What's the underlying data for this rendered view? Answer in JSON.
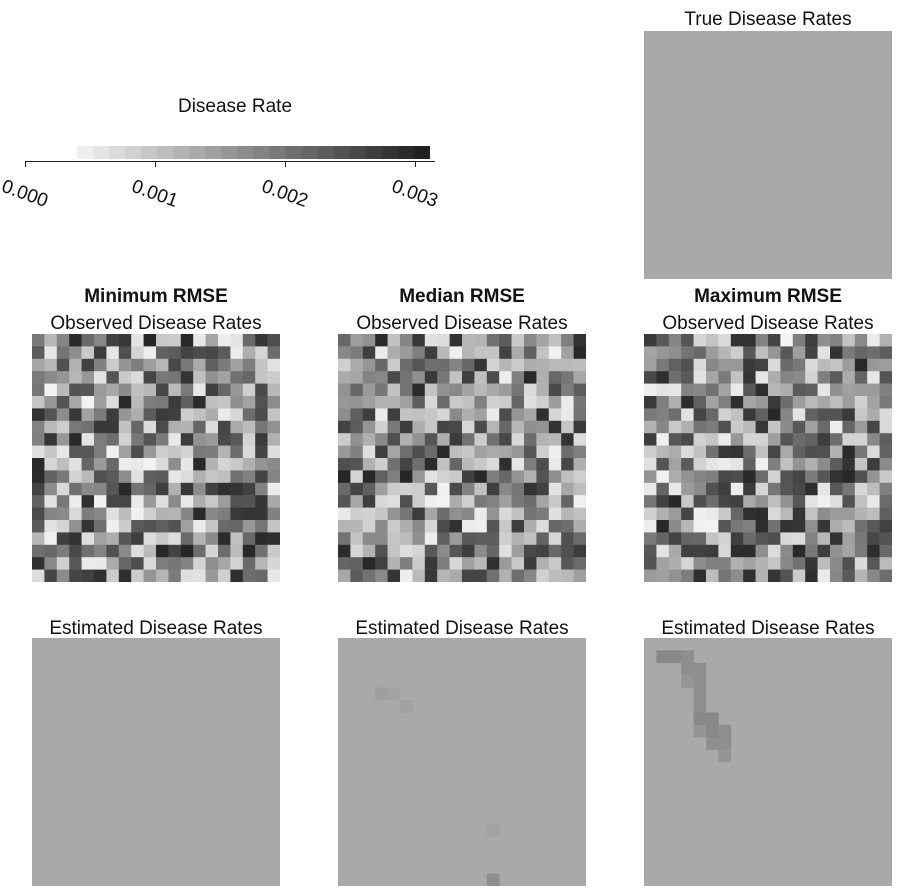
{
  "chart_data": {
    "type": "heatmap",
    "colorbar": {
      "title": "Disease Rate",
      "ticks": [
        "0.000",
        "0.001",
        "0.002",
        "0.003"
      ],
      "range": [
        0,
        0.0032
      ],
      "colors": [
        "#f3f3f3",
        "#1c1c1c"
      ]
    },
    "grid_size": 20,
    "panels": {
      "true_rates": {
        "title": "True Disease Rates",
        "uniform_value": 0.0011
      },
      "min": {
        "header": "Minimum RMSE",
        "observed_title": "Observed Disease Rates",
        "estimated_title": "Estimated Disease Rates",
        "estimated_base": 0.0011,
        "estimated_cells": []
      },
      "median": {
        "header": "Median RMSE",
        "observed_title": "Observed Disease Rates",
        "estimated_title": "Estimated Disease Rates",
        "estimated_base": 0.0011,
        "estimated_cells": [
          [
            4,
            3,
            0.00125
          ],
          [
            4,
            4,
            0.0012
          ],
          [
            5,
            5,
            0.00122
          ],
          [
            15,
            12,
            0.0012
          ],
          [
            19,
            12,
            0.0015
          ]
        ]
      },
      "max": {
        "header": "Maximum RMSE",
        "observed_title": "Observed Disease Rates",
        "estimated_title": "Estimated Disease Rates",
        "estimated_base": 0.0011,
        "estimated_cells": [
          [
            1,
            1,
            0.0016
          ],
          [
            1,
            2,
            0.0016
          ],
          [
            1,
            3,
            0.0015
          ],
          [
            2,
            3,
            0.0015
          ],
          [
            2,
            4,
            0.0015
          ],
          [
            3,
            3,
            0.0014
          ],
          [
            3,
            4,
            0.0015
          ],
          [
            4,
            4,
            0.0015
          ],
          [
            5,
            4,
            0.0015
          ],
          [
            6,
            4,
            0.0016
          ],
          [
            6,
            5,
            0.0016
          ],
          [
            7,
            4,
            0.0014
          ],
          [
            7,
            5,
            0.0016
          ],
          [
            7,
            6,
            0.0015
          ],
          [
            8,
            5,
            0.0015
          ],
          [
            8,
            6,
            0.0015
          ],
          [
            9,
            6,
            0.0014
          ]
        ]
      }
    }
  }
}
